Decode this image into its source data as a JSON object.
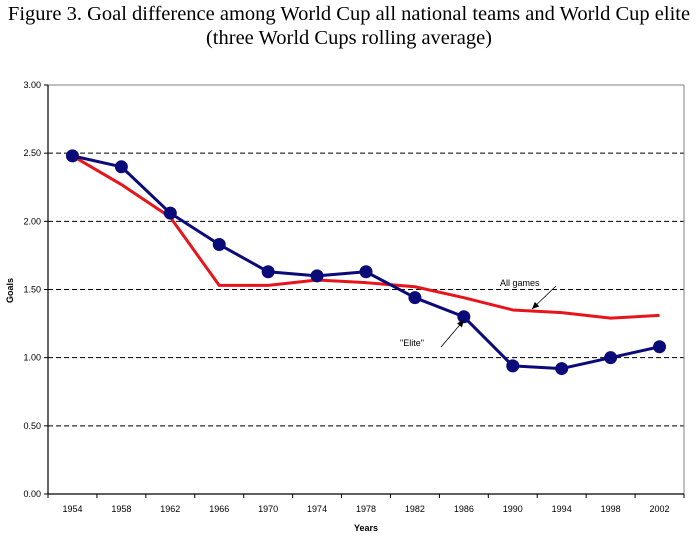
{
  "chart_data": {
    "type": "line",
    "title": "Figure 3. Goal difference among World Cup all national teams and World Cup elite",
    "subtitle": "(three World Cups rolling average)",
    "xlabel": "Years",
    "ylabel": "Goals",
    "categories": [
      "1954",
      "1958",
      "1962",
      "1966",
      "1970",
      "1974",
      "1978",
      "1982",
      "1986",
      "1990",
      "1994",
      "1998",
      "2002"
    ],
    "yticks": [
      "0.00",
      "0.50",
      "1.00",
      "1.50",
      "2.00",
      "2.50",
      "3.00"
    ],
    "ylim": [
      0,
      3
    ],
    "grid": "horizontal dashed",
    "legend": "none (inline annotations)",
    "series": [
      {
        "name": "All games",
        "color": "#e8141c",
        "marker": "none",
        "values": [
          2.48,
          2.27,
          2.03,
          1.53,
          1.53,
          1.57,
          1.55,
          1.52,
          1.44,
          1.35,
          1.33,
          1.29,
          1.31
        ]
      },
      {
        "name": "\"Elite\"",
        "color": "#0a0a78",
        "marker": "circle",
        "values": [
          2.48,
          2.4,
          2.06,
          1.83,
          1.63,
          1.6,
          1.63,
          1.44,
          1.3,
          0.94,
          0.92,
          1.0,
          1.08
        ]
      }
    ],
    "annotations": [
      {
        "text": "All games",
        "points_to_series": "All games",
        "near_category": "1990"
      },
      {
        "text": "\"Elite\"",
        "points_to_series": "\"Elite\"",
        "near_category": "1986"
      }
    ]
  }
}
